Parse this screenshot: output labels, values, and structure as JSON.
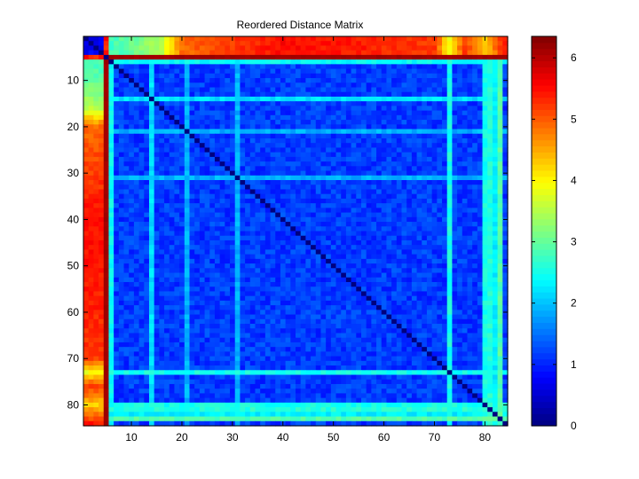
{
  "chart_data": {
    "type": "heatmap",
    "title": "Reordered Distance Matrix",
    "xlabel": "",
    "ylabel": "",
    "size": 84,
    "x_ticks": [
      10,
      20,
      30,
      40,
      50,
      60,
      70,
      80
    ],
    "y_ticks": [
      10,
      20,
      30,
      40,
      50,
      60,
      70,
      80
    ],
    "colorbar": {
      "range": [
        0,
        6.35
      ],
      "ticks": [
        0,
        1,
        2,
        3,
        4,
        5,
        6
      ],
      "colormap": "jet"
    },
    "diagonal_value": 0,
    "far_row": 5,
    "far_row_values": [
      5.6,
      5.3,
      5.2,
      5.5,
      0,
      6.2
    ],
    "high_band_rows": [
      1,
      2,
      3,
      4,
      5,
      6
    ],
    "high_band_row_values": [
      0.5,
      0.6,
      0.7,
      0.6
    ],
    "high_band_col_gradient": [
      [
        6,
        2.8
      ],
      [
        10,
        3.0
      ],
      [
        16,
        3.5
      ],
      [
        20,
        4.9
      ],
      [
        27,
        5.1
      ],
      [
        40,
        5.5
      ],
      [
        55,
        5.4
      ],
      [
        70,
        5.2
      ],
      [
        73,
        3.9
      ],
      [
        76,
        5.2
      ],
      [
        80,
        4.3
      ],
      [
        84,
        5.4
      ]
    ],
    "stripe_rows": [
      {
        "index": 6,
        "value": 2.4
      },
      {
        "index": 14,
        "value": 2.2
      },
      {
        "index": 21,
        "value": 1.9
      },
      {
        "index": 31,
        "value": 1.9
      },
      {
        "index": 73,
        "value": 2.5
      },
      {
        "index": 80,
        "value": 2.5
      },
      {
        "index": 81,
        "value": 2.6
      },
      {
        "index": 82,
        "value": 2.3
      },
      {
        "index": 83,
        "value": 2.9
      }
    ],
    "bulk_value_range": [
      0.9,
      1.4
    ]
  }
}
